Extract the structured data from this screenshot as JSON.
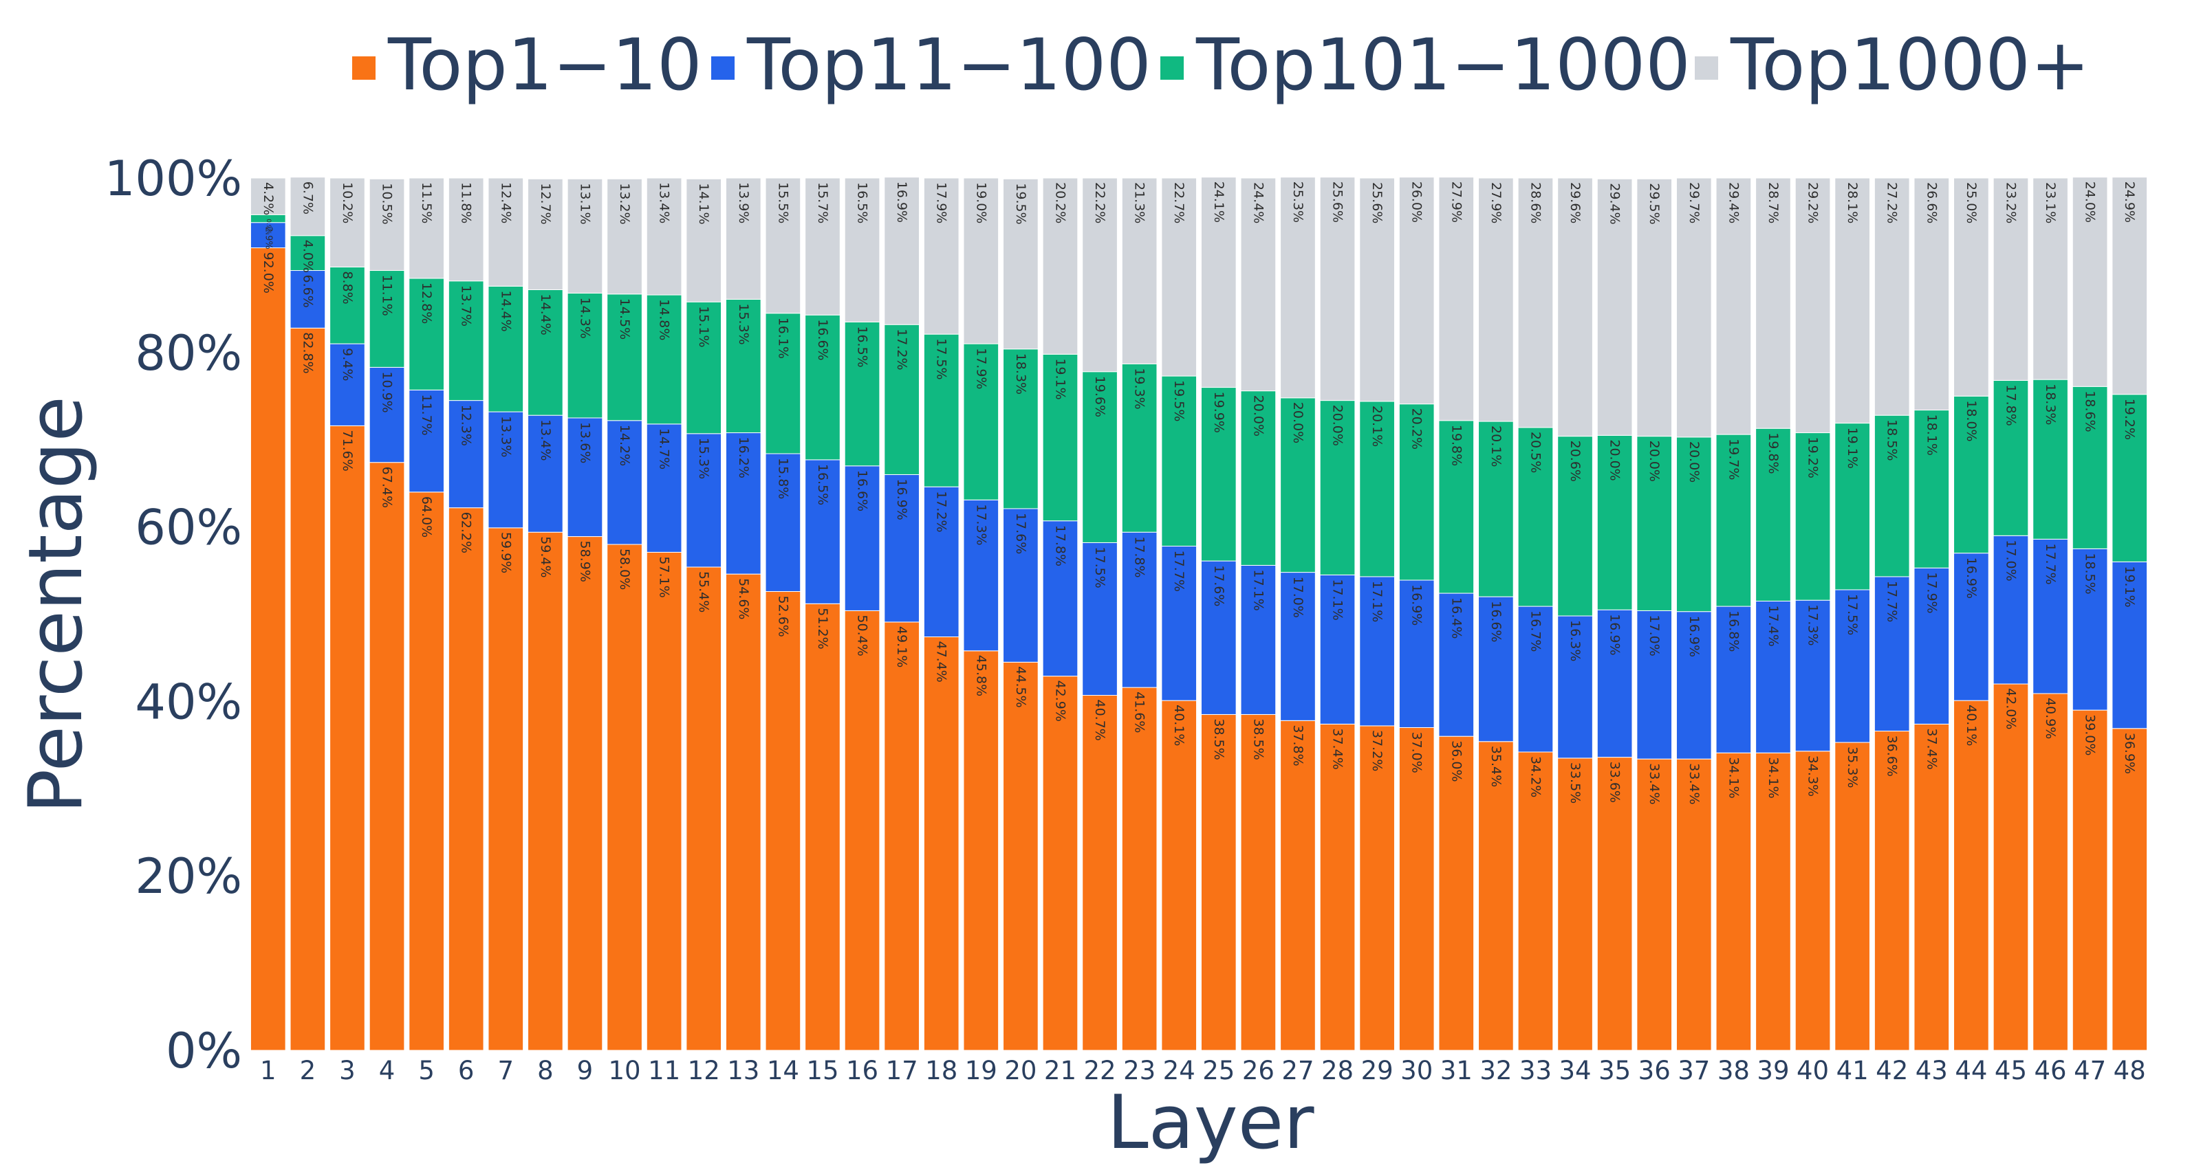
{
  "chart_data": {
    "type": "bar",
    "stacked": true,
    "percent_stacked": true,
    "xlabel": "Layer",
    "ylabel": "Percentage",
    "ylim": [
      0,
      100
    ],
    "yticks": [
      "0%",
      "20%",
      "40%",
      "60%",
      "80%",
      "100%"
    ],
    "legend_position": "top",
    "categories": [
      "1",
      "2",
      "3",
      "4",
      "5",
      "6",
      "7",
      "8",
      "9",
      "10",
      "11",
      "12",
      "13",
      "14",
      "15",
      "16",
      "17",
      "18",
      "19",
      "20",
      "21",
      "22",
      "23",
      "24",
      "25",
      "26",
      "27",
      "28",
      "29",
      "30",
      "31",
      "32",
      "33",
      "34",
      "35",
      "36",
      "37",
      "38",
      "39",
      "40",
      "41",
      "42",
      "43",
      "44",
      "45",
      "46",
      "47",
      "48"
    ],
    "series": [
      {
        "name": "Top1−10",
        "color": "#f97316",
        "values": [
          92.0,
          82.8,
          71.6,
          67.4,
          64.0,
          62.2,
          59.9,
          59.4,
          58.9,
          58.0,
          57.1,
          55.4,
          54.6,
          52.6,
          51.2,
          50.4,
          49.1,
          47.4,
          45.8,
          44.5,
          42.9,
          40.7,
          41.6,
          40.1,
          38.5,
          38.5,
          37.8,
          37.4,
          37.2,
          37.0,
          36.0,
          35.4,
          34.2,
          33.5,
          33.6,
          33.4,
          33.4,
          34.1,
          34.1,
          34.3,
          35.3,
          36.6,
          37.4,
          40.1,
          42.0,
          40.9,
          39.0,
          36.9
        ]
      },
      {
        "name": "Top11−100",
        "color": "#2563eb",
        "values": [
          2.9,
          6.6,
          9.4,
          10.9,
          11.7,
          12.3,
          13.3,
          13.4,
          13.6,
          14.2,
          14.7,
          15.3,
          16.2,
          15.8,
          16.5,
          16.6,
          16.9,
          17.2,
          17.3,
          17.6,
          17.8,
          17.5,
          17.8,
          17.7,
          17.6,
          17.1,
          17.0,
          17.1,
          17.1,
          16.9,
          16.4,
          16.6,
          16.7,
          16.3,
          16.9,
          17.0,
          16.9,
          16.8,
          17.4,
          17.3,
          17.5,
          17.7,
          17.9,
          16.9,
          17.0,
          17.7,
          18.5,
          19.1
        ]
      },
      {
        "name": "Top101−1000",
        "color": "#10b981",
        "values": [
          0.9,
          4.0,
          8.8,
          11.1,
          12.8,
          13.7,
          14.4,
          14.4,
          14.3,
          14.5,
          14.8,
          15.1,
          15.3,
          16.1,
          16.6,
          16.5,
          17.2,
          17.5,
          17.9,
          18.3,
          19.1,
          19.6,
          19.3,
          19.5,
          19.9,
          20.0,
          20.0,
          20.0,
          20.1,
          20.2,
          19.8,
          20.1,
          20.5,
          20.6,
          20.0,
          20.0,
          20.0,
          19.7,
          19.8,
          19.2,
          19.1,
          18.5,
          18.1,
          18.0,
          17.8,
          18.3,
          18.6,
          19.2
        ]
      },
      {
        "name": "Top1000+",
        "color": "#d1d5db",
        "values": [
          4.2,
          6.7,
          10.2,
          10.5,
          11.5,
          11.8,
          12.4,
          12.7,
          13.1,
          13.2,
          13.4,
          14.1,
          13.9,
          15.5,
          15.7,
          16.5,
          16.9,
          17.9,
          19.0,
          19.5,
          20.2,
          22.2,
          21.3,
          22.7,
          24.1,
          24.4,
          25.3,
          25.6,
          25.6,
          26.0,
          27.9,
          27.9,
          28.6,
          29.6,
          29.4,
          29.5,
          29.7,
          29.4,
          28.7,
          29.2,
          28.1,
          27.2,
          26.6,
          25.0,
          23.2,
          23.1,
          24.0,
          24.9
        ]
      }
    ],
    "data_labels": [
      [
        "92.0%",
        "82.8%",
        "71.6%",
        "67.4%",
        "64.0%",
        "62.2%",
        "59.9%",
        "59.4%",
        "58.9%",
        "58.0%",
        "57.1%",
        "55.4%",
        "54.6%",
        "52.6%",
        "51.2%",
        "50.4%",
        "49.1%",
        "47.4%",
        "45.8%",
        "44.5%",
        "42.9%",
        "40.7%",
        "41.6%",
        "40.1%",
        "38.5%",
        "38.5%",
        "37.8%",
        "37.4%",
        "37.2%",
        "37.0%",
        "36.0%",
        "35.4%",
        "34.2%",
        "33.5%",
        "33.6%",
        "33.4%",
        "33.4%",
        "34.1%",
        "34.1%",
        "34.3%",
        "35.3%",
        "36.6%",
        "37.4%",
        "40.1%",
        "42.0%",
        "40.9%",
        "39.0%",
        "36.9%"
      ],
      [
        "2.9%",
        "6.6%",
        "9.4%",
        "10.9%",
        "11.7%",
        "12.3%",
        "13.3%",
        "13.4%",
        "13.6%",
        "14.2%",
        "14.7%",
        "15.3%",
        "16.2%",
        "15.8%",
        "16.5%",
        "16.6%",
        "16.9%",
        "17.2%",
        "17.3%",
        "17.6%",
        "17.8%",
        "17.5%",
        "17.8%",
        "17.7%",
        "17.6%",
        "17.1%",
        "17.0%",
        "17.1%",
        "17.1%",
        "16.9%",
        "16.4%",
        "16.6%",
        "16.7%",
        "16.3%",
        "16.9%",
        "17.0%",
        "16.9%",
        "16.8%",
        "17.4%",
        "17.3%",
        "17.5%",
        "17.7%",
        "17.9%",
        "16.9%",
        "17.0%",
        "17.7%",
        "18.5%",
        "19.1%"
      ],
      [
        "0.9%",
        "4.0%",
        "8.8%",
        "11.1%",
        "12.8%",
        "13.7%",
        "14.4%",
        "14.4%",
        "14.3%",
        "14.5%",
        "14.8%",
        "15.1%",
        "15.3%",
        "16.1%",
        "16.6%",
        "16.5%",
        "17.2%",
        "17.5%",
        "17.9%",
        "18.3%",
        "19.1%",
        "19.6%",
        "19.3%",
        "19.5%",
        "19.9%",
        "20.0%",
        "20.0%",
        "20.0%",
        "20.1%",
        "20.2%",
        "19.8%",
        "20.1%",
        "20.5%",
        "20.6%",
        "20.0%",
        "20.0%",
        "20.0%",
        "19.7%",
        "19.8%",
        "19.2%",
        "19.1%",
        "18.5%",
        "18.1%",
        "18.0%",
        "17.8%",
        "18.3%",
        "18.6%",
        "19.2%"
      ],
      [
        "4.2%",
        "6.7%",
        "10.2%",
        "10.5%",
        "11.5%",
        "11.8%",
        "12.4%",
        "12.7%",
        "13.1%",
        "13.2%",
        "13.4%",
        "14.1%",
        "13.9%",
        "15.5%",
        "15.7%",
        "16.5%",
        "16.9%",
        "17.9%",
        "19.0%",
        "19.5%",
        "20.2%",
        "22.2%",
        "21.3%",
        "22.7%",
        "24.1%",
        "24.4%",
        "25.3%",
        "25.6%",
        "25.6%",
        "26.0%",
        "27.9%",
        "27.9%",
        "28.6%",
        "29.6%",
        "29.4%",
        "29.5%",
        "29.7%",
        "29.4%",
        "28.7%",
        "29.2%",
        "28.1%",
        "27.2%",
        "26.6%",
        "25.0%",
        "23.2%",
        "23.1%",
        "24.0%",
        "24.9%"
      ]
    ]
  },
  "colors": {
    "axis_text": "#2a3f5f",
    "background": "#ffffff"
  }
}
